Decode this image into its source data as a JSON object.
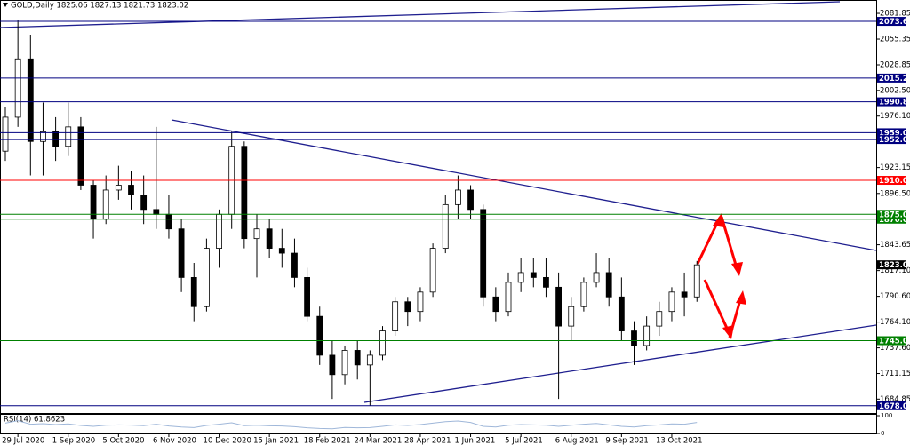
{
  "chart_data": [
    {
      "type": "candlestick",
      "title": "GOLD,Daily  1825.06 1827.13 1821.73 1823.02",
      "categories": [
        null,
        "29 Jul 2020",
        null,
        null,
        null,
        "1 Sep 2020",
        null,
        null,
        null,
        "5 Oct 2020",
        null,
        null,
        null,
        "6 Nov 2020",
        null,
        null,
        null,
        "10 Dec 2020",
        null,
        null,
        null,
        "15 Jan 2021",
        null,
        null,
        null,
        "18 Feb 2021",
        null,
        null,
        null,
        "24 Mar 2021",
        null,
        null,
        null,
        "28 Apr 2021",
        null,
        null,
        null,
        "1 Jun 2021",
        null,
        null,
        null,
        "5 Jul 2021",
        null,
        null,
        null,
        "6 Aug 2021",
        null,
        null,
        null,
        "9 Sep 2021",
        null,
        null,
        null,
        "13 Oct 2021",
        null,
        null
      ],
      "open": [
        1940,
        1975,
        2035,
        1950,
        1960,
        1945,
        1965,
        1905,
        1870,
        1900,
        1905,
        1895,
        1880,
        1875,
        1860,
        1810,
        1780,
        1840,
        1875,
        1945,
        1850,
        1860,
        1840,
        1835,
        1810,
        1770,
        1730,
        1710,
        1735,
        1720,
        1730,
        1755,
        1785,
        1775,
        1795,
        1840,
        1885,
        1900,
        1880,
        1790,
        1775,
        1805,
        1815,
        1810,
        1800,
        1760,
        1780,
        1805,
        1815,
        1790,
        1755,
        1740,
        1760,
        1775,
        1795,
        1790
      ],
      "high": [
        1985,
        2075,
        2060,
        1990,
        1975,
        1990,
        1975,
        1910,
        1915,
        1925,
        1920,
        1915,
        1965,
        1895,
        1870,
        1825,
        1850,
        1880,
        1960,
        1950,
        1875,
        1870,
        1860,
        1850,
        1820,
        1780,
        1745,
        1740,
        1745,
        1735,
        1760,
        1790,
        1790,
        1800,
        1845,
        1895,
        1915,
        1905,
        1885,
        1800,
        1815,
        1830,
        1830,
        1830,
        1815,
        1790,
        1810,
        1835,
        1830,
        1810,
        1765,
        1770,
        1785,
        1800,
        1815,
        1827
      ],
      "low": [
        1930,
        1965,
        1915,
        1915,
        1930,
        1935,
        1900,
        1850,
        1865,
        1890,
        1880,
        1865,
        1860,
        1850,
        1795,
        1765,
        1775,
        1820,
        1860,
        1840,
        1810,
        1830,
        1820,
        1800,
        1765,
        1720,
        1685,
        1700,
        1705,
        1678,
        1725,
        1750,
        1760,
        1765,
        1790,
        1835,
        1870,
        1870,
        1780,
        1765,
        1770,
        1795,
        1800,
        1790,
        1685,
        1745,
        1775,
        1800,
        1780,
        1745,
        1720,
        1735,
        1750,
        1765,
        1770,
        1785
      ],
      "close": [
        1975,
        2035,
        1950,
        1960,
        1945,
        1965,
        1905,
        1870,
        1900,
        1905,
        1895,
        1880,
        1875,
        1860,
        1810,
        1780,
        1840,
        1875,
        1945,
        1850,
        1860,
        1840,
        1835,
        1810,
        1770,
        1730,
        1710,
        1735,
        1720,
        1730,
        1755,
        1785,
        1775,
        1795,
        1840,
        1885,
        1900,
        1880,
        1790,
        1775,
        1805,
        1815,
        1810,
        1800,
        1760,
        1780,
        1805,
        1815,
        1790,
        1755,
        1740,
        1760,
        1775,
        1795,
        1790,
        1823
      ],
      "up_color": "#ffffff",
      "down_color": "#000000",
      "outline_color": "#000000",
      "ylim": [
        1670.5,
        2095.6
      ],
      "yticks": [
        2081.85,
        2055.35,
        2028.85,
        {
          "value": 2002.5,
          "label": "2002.50"
        },
        {
          "value": 1976.1,
          "label": "1976.10"
        },
        1923.15,
        {
          "value": 1896.5,
          "label": "1896.50"
        },
        1843.65,
        {
          "value": 1817.1,
          "label": "1817.10"
        },
        {
          "value": 1790.6,
          "label": "1790.60"
        },
        {
          "value": 1764.1,
          "label": "1764.10"
        },
        {
          "value": 1737.6,
          "label": "1737.60"
        },
        1711.15,
        1684.85
      ],
      "levels": [
        {
          "value": 2073.61,
          "label": "2073.61",
          "color": "#000080",
          "line": true
        },
        {
          "value": 2015.25,
          "label": "2015.25",
          "color": "#000080",
          "line": true
        },
        {
          "value": 1990.86,
          "label": "1990.86",
          "color": "#000080",
          "line": true
        },
        {
          "value": 1959,
          "label": "1959.00",
          "color": "#000080",
          "line": true
        },
        {
          "value": 1952,
          "label": "1952.00",
          "color": "#000080",
          "line": true
        },
        {
          "value": 1910,
          "label": "1910.00",
          "color": "#ff0000",
          "line": true
        },
        {
          "value": 1870,
          "label": "1870.00",
          "color": "#008000",
          "line": true
        },
        {
          "value": 1875,
          "label": "1875.00",
          "color": "#008000",
          "line": true
        },
        {
          "value": 1823.02,
          "label": "1823.02",
          "color": "#000000",
          "line": false
        },
        {
          "value": 1745,
          "label": "1745.00",
          "color": "#008000",
          "line": true
        },
        {
          "value": 1678,
          "label": "1678.00",
          "color": "#000080",
          "line": true
        }
      ]
    },
    {
      "type": "line",
      "title": "RSI(14) 61.8623",
      "color": "#9fb7d9",
      "values": [
        58,
        72,
        52,
        55,
        50,
        54,
        45,
        40,
        46,
        48,
        47,
        44,
        52,
        42,
        36,
        33,
        45,
        52,
        60,
        44,
        46,
        43,
        42,
        38,
        32,
        28,
        26,
        34,
        32,
        33,
        40,
        48,
        45,
        50,
        58,
        66,
        70,
        62,
        40,
        36,
        46,
        50,
        48,
        46,
        40,
        46,
        52,
        56,
        48,
        40,
        36,
        44,
        48,
        54,
        52,
        62
      ],
      "ylim": [
        0,
        100
      ],
      "yticks": [
        100,
        0
      ]
    }
  ]
}
